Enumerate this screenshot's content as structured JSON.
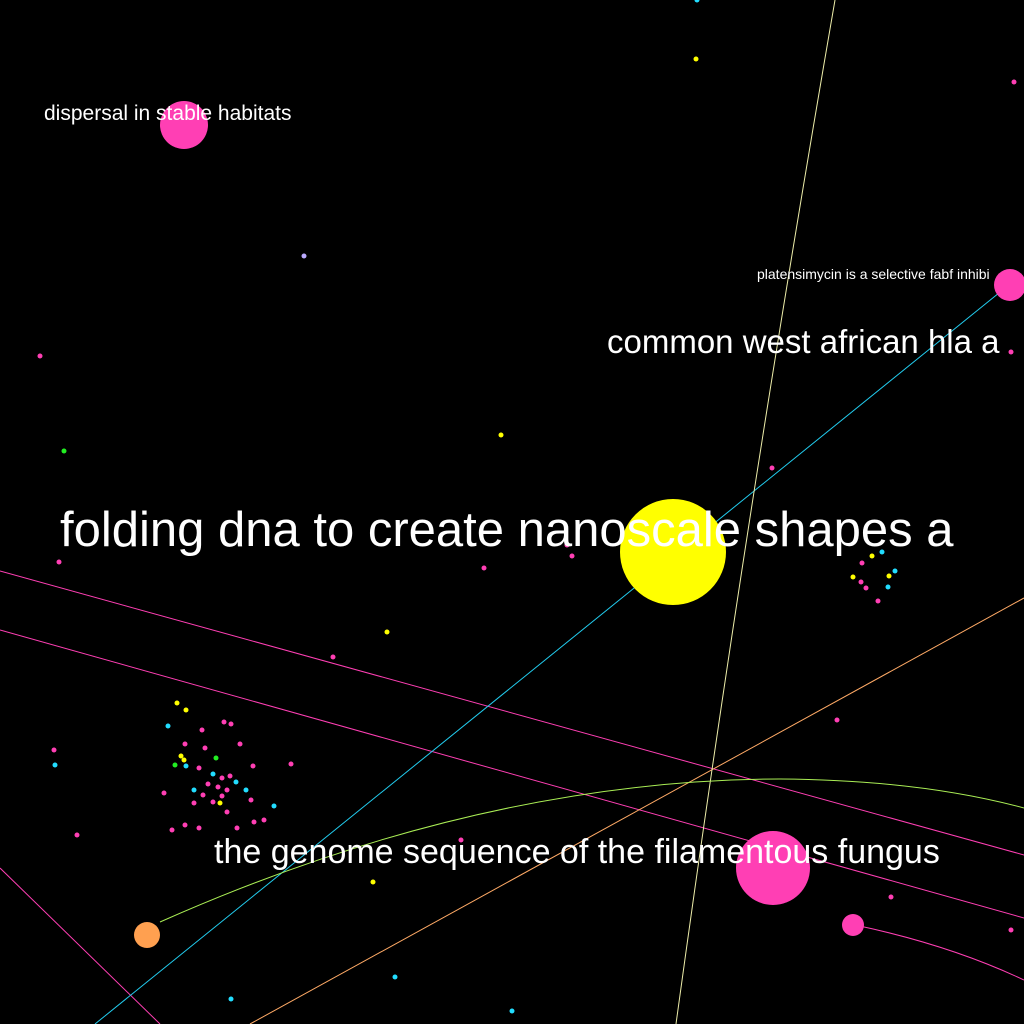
{
  "colors": {
    "background": "#000000",
    "magenta": "#ff3fb4",
    "yellow": "#ffff00",
    "cyan": "#22ddff",
    "orange": "#ffa050",
    "green": "#22ee22",
    "lavender": "#bbaaff",
    "label": "#ffffff",
    "edge_magenta": "#ff3fb4",
    "edge_cyan": "#22ccee",
    "edge_orange": "#ffaa66",
    "edge_lime": "#aaee55",
    "edge_pale": "#eeeeaa"
  },
  "labels": {
    "dispersal": "dispersal in stable habitats",
    "platensimycin": "platensimycin is a selective fabf inhibi",
    "west_african": "common west african hla a",
    "folding_dna": "folding dna to create nanoscale shapes a",
    "genome": "the genome sequence of the filamentous fungus"
  }
}
